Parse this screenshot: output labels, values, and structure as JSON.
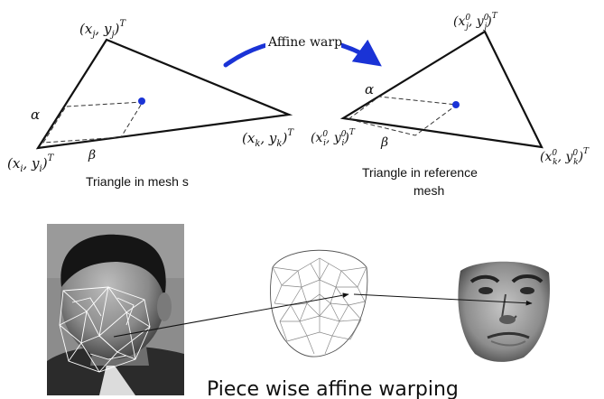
{
  "top": {
    "warp_label": "Affine warp",
    "left_triangle": {
      "vertex_j": "(x",
      "vertex_j_sub": "j",
      "vertex_j_mid": ", y",
      "vertex_j_sub2": "j",
      "vertex_j_end": ")",
      "vertex_j_sup": "T",
      "vertex_i": "(x",
      "vertex_i_sub": "i",
      "vertex_i_mid": ", y",
      "vertex_i_sub2": "i",
      "vertex_i_end": ")",
      "vertex_i_sup": "T",
      "vertex_k": "(x",
      "vertex_k_sub": "k",
      "vertex_k_mid": ", y",
      "vertex_k_sub2": "k",
      "vertex_k_end": ")",
      "vertex_k_sup": "T",
      "alpha": "α",
      "beta": "β",
      "caption": "Triangle in mesh s"
    },
    "right_triangle": {
      "vertex_j": "(x",
      "vertex_j_sup": "0",
      "vertex_j_sub": "j",
      "vertex_j_mid": ", y",
      "vertex_j_sup2": "0",
      "vertex_j_sub2": "j",
      "vertex_j_end": ")",
      "vertex_j_T": "T",
      "vertex_i": "(x",
      "vertex_i_sup": "0",
      "vertex_i_sub": "i",
      "vertex_i_mid": ", y",
      "vertex_i_sup2": "0",
      "vertex_i_sub2": "i",
      "vertex_i_end": ")",
      "vertex_i_T": "T",
      "vertex_k": "(x",
      "vertex_k_sup": "0",
      "vertex_k_sub": "k",
      "vertex_k_mid": ", y",
      "vertex_k_sup2": "0",
      "vertex_k_sub2": "k",
      "vertex_k_end": ")",
      "vertex_k_T": "T",
      "alpha": "α",
      "beta": "β",
      "caption_line1": "Triangle in reference",
      "caption_line2": "mesh"
    }
  },
  "bottom": {
    "title": "Piece wise affine warping",
    "photo_icon": "face-photo-with-mesh",
    "mesh_icon": "reference-mesh-wireframe",
    "warped_icon": "warped-face-texture"
  },
  "colors": {
    "accent": "#1a33d6",
    "line": "#111111",
    "mesh": "#ffffff"
  }
}
